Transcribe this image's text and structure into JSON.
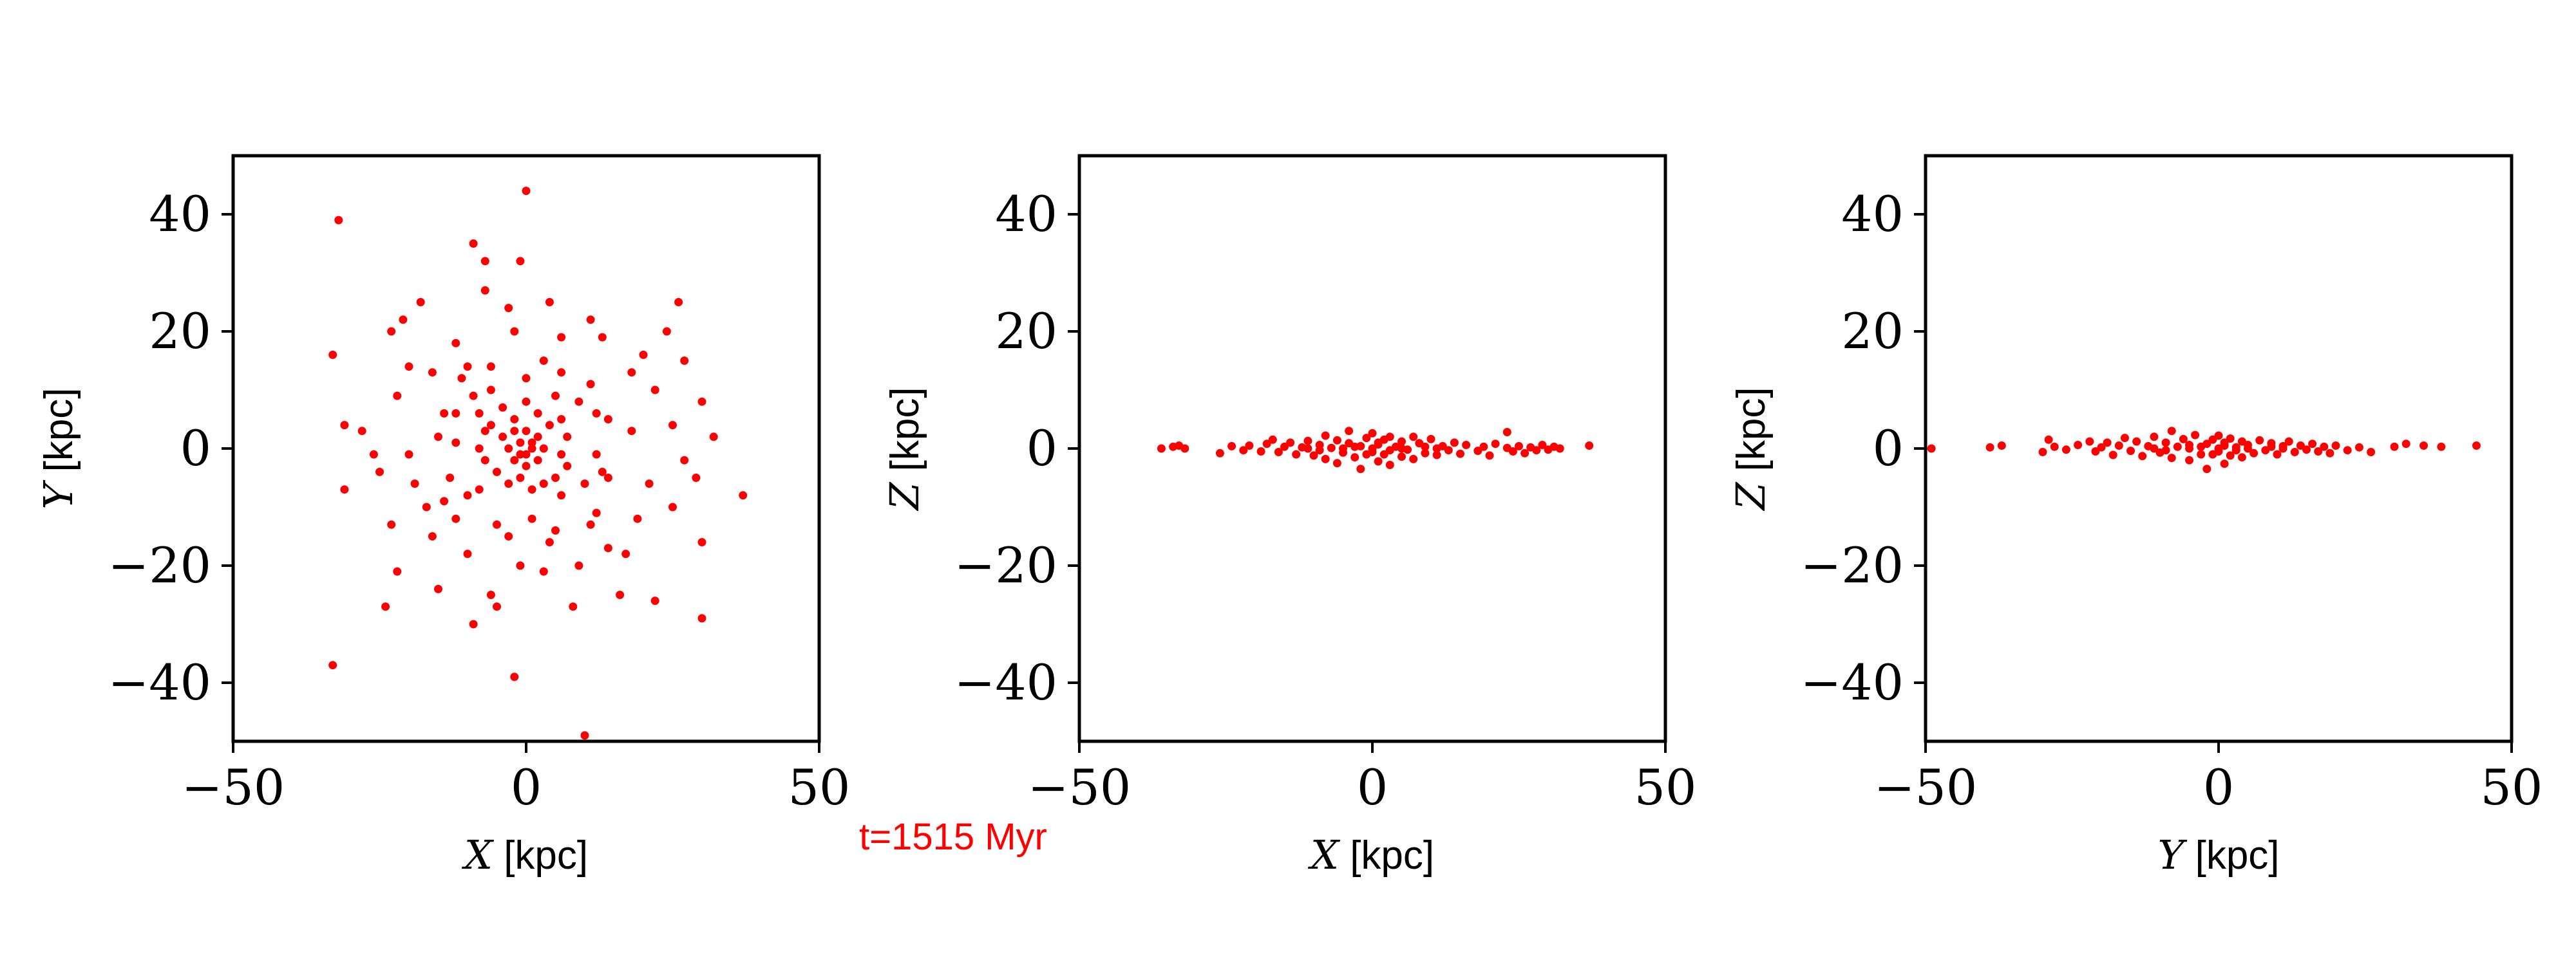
{
  "figure": {
    "time_label": "t=1515 Myr",
    "marker_color": "#ff0000",
    "axis_color": "#000000"
  },
  "chart_data": [
    {
      "type": "scatter",
      "title": "",
      "xlabel": {
        "var": "X",
        "unit": " [kpc]"
      },
      "ylabel": {
        "var": "Y",
        "unit": " [kpc]"
      },
      "xlim": [
        -50,
        50
      ],
      "ylim": [
        -50,
        50
      ],
      "xticks": [
        -50,
        0,
        50
      ],
      "yticks": [
        -40,
        -20,
        0,
        20,
        40
      ],
      "xtick_labels": [
        "−50",
        "0",
        "50"
      ],
      "ytick_labels": [
        "−40",
        "−20",
        "0",
        "20",
        "40"
      ],
      "grid": false,
      "color": "#ff0000",
      "points": [
        [
          -32,
          39
        ],
        [
          0,
          44
        ],
        [
          -9,
          35
        ],
        [
          -7,
          32
        ],
        [
          -1,
          32
        ],
        [
          -18,
          25
        ],
        [
          -21,
          22
        ],
        [
          -7,
          27
        ],
        [
          -3,
          24
        ],
        [
          4,
          25
        ],
        [
          11,
          22
        ],
        [
          26,
          25
        ],
        [
          -33,
          16
        ],
        [
          -23,
          20
        ],
        [
          -12,
          18
        ],
        [
          -2,
          20
        ],
        [
          6,
          19
        ],
        [
          13,
          19
        ],
        [
          24,
          20
        ],
        [
          27,
          15
        ],
        [
          -31,
          4
        ],
        [
          -22,
          9
        ],
        [
          -16,
          13
        ],
        [
          -10,
          14
        ],
        [
          3,
          15
        ],
        [
          18,
          13
        ],
        [
          22,
          10
        ],
        [
          30,
          8
        ],
        [
          -28,
          3
        ],
        [
          -20,
          -1
        ],
        [
          -15,
          2
        ],
        [
          -12,
          6
        ],
        [
          -6,
          10
        ],
        [
          5,
          9
        ],
        [
          12,
          6
        ],
        [
          18,
          3
        ],
        [
          25,
          4
        ],
        [
          32,
          2
        ],
        [
          -31,
          -7
        ],
        [
          -25,
          -4
        ],
        [
          -19,
          -6
        ],
        [
          -14,
          -9
        ],
        [
          -8,
          -7
        ],
        [
          6,
          -8
        ],
        [
          14,
          -5
        ],
        [
          21,
          -6
        ],
        [
          29,
          -5
        ],
        [
          37,
          -8
        ],
        [
          -23,
          -13
        ],
        [
          -16,
          -15
        ],
        [
          -10,
          -18
        ],
        [
          -3,
          -15
        ],
        [
          4,
          -16
        ],
        [
          11,
          -13
        ],
        [
          19,
          -12
        ],
        [
          25,
          -10
        ],
        [
          30,
          -16
        ],
        [
          -24,
          -27
        ],
        [
          -22,
          -21
        ],
        [
          -15,
          -24
        ],
        [
          -9,
          -30
        ],
        [
          -6,
          -25
        ],
        [
          -1,
          -20
        ],
        [
          3,
          -21
        ],
        [
          9,
          -20
        ],
        [
          16,
          -25
        ],
        [
          22,
          -26
        ],
        [
          30,
          -29
        ],
        [
          -33,
          -37
        ],
        [
          -2,
          -39
        ],
        [
          10,
          -49
        ],
        [
          14,
          -17
        ],
        [
          -17,
          -10
        ],
        [
          17,
          -18
        ],
        [
          -20,
          14
        ],
        [
          20,
          16
        ],
        [
          -5,
          -27
        ],
        [
          8,
          -27
        ],
        [
          -26,
          -1
        ],
        [
          27,
          -2
        ],
        [
          -8,
          6
        ],
        [
          -6,
          4
        ],
        [
          -4,
          7
        ],
        [
          -2,
          5
        ],
        [
          0,
          8
        ],
        [
          2,
          6
        ],
        [
          4,
          4
        ],
        [
          6,
          5
        ],
        [
          7,
          2
        ],
        [
          6,
          -1
        ],
        [
          7,
          -3
        ],
        [
          5,
          -5
        ],
        [
          3,
          -6
        ],
        [
          1,
          -7
        ],
        [
          -1,
          -5
        ],
        [
          -3,
          -6
        ],
        [
          -5,
          -4
        ],
        [
          -7,
          -2
        ],
        [
          -8,
          0
        ],
        [
          -7,
          3
        ],
        [
          -4,
          2
        ],
        [
          -2,
          3
        ],
        [
          0,
          3
        ],
        [
          2,
          2
        ],
        [
          3,
          0
        ],
        [
          2,
          -2
        ],
        [
          0,
          -3
        ],
        [
          -2,
          -2
        ],
        [
          -3,
          0
        ],
        [
          -1,
          1
        ],
        [
          1,
          0
        ],
        [
          0,
          -1
        ],
        [
          -1,
          -1
        ],
        [
          1,
          1
        ],
        [
          -9,
          9
        ],
        [
          9,
          8
        ],
        [
          10,
          -6
        ],
        [
          -10,
          -8
        ],
        [
          -12,
          1
        ],
        [
          12,
          -1
        ],
        [
          0,
          12
        ],
        [
          1,
          -12
        ],
        [
          -11,
          12
        ],
        [
          11,
          11
        ],
        [
          -12,
          -12
        ],
        [
          12,
          -11
        ],
        [
          -6,
          14
        ],
        [
          6,
          13
        ],
        [
          -14,
          6
        ],
        [
          14,
          5
        ],
        [
          -13,
          -5
        ],
        [
          13,
          -4
        ],
        [
          -5,
          -13
        ],
        [
          5,
          -14
        ]
      ]
    },
    {
      "type": "scatter",
      "title": "",
      "xlabel": {
        "var": "X",
        "unit": " [kpc]"
      },
      "ylabel": {
        "var": "Z",
        "unit": " [kpc]"
      },
      "xlim": [
        -50,
        50
      ],
      "ylim": [
        -50,
        50
      ],
      "xticks": [
        -50,
        0,
        50
      ],
      "yticks": [
        -40,
        -20,
        0,
        20,
        40
      ],
      "xtick_labels": [
        "−50",
        "0",
        "50"
      ],
      "ytick_labels": [
        "−40",
        "−20",
        "0",
        "20",
        "40"
      ],
      "grid": false,
      "color": "#ff0000",
      "points": [
        [
          -36,
          0
        ],
        [
          -34,
          0.3
        ],
        [
          -33,
          0.5
        ],
        [
          -32,
          0
        ],
        [
          -26,
          -0.8
        ],
        [
          -24,
          0.4
        ],
        [
          -22,
          -0.3
        ],
        [
          -21,
          0.5
        ],
        [
          -19,
          -0.5
        ],
        [
          -18,
          0.8
        ],
        [
          -17,
          1.5
        ],
        [
          -16,
          -0.6
        ],
        [
          -15,
          0.3
        ],
        [
          -14,
          1
        ],
        [
          -13,
          -1
        ],
        [
          -12,
          0.2
        ],
        [
          -11,
          1.3
        ],
        [
          -10,
          -1.2
        ],
        [
          -9,
          0.6
        ],
        [
          -8,
          2.2
        ],
        [
          -8,
          -1.8
        ],
        [
          -7,
          0.1
        ],
        [
          -6,
          1.4
        ],
        [
          -6,
          -2.5
        ],
        [
          -5,
          -0.7
        ],
        [
          -4,
          3
        ],
        [
          -4,
          0.9
        ],
        [
          -3,
          -1.5
        ],
        [
          -2,
          0.4
        ],
        [
          -2,
          -3.5
        ],
        [
          -1,
          1.8
        ],
        [
          0,
          -0.6
        ],
        [
          0,
          2.6
        ],
        [
          1,
          -2.2
        ],
        [
          1,
          0.7
        ],
        [
          2,
          1.5
        ],
        [
          2,
          -1
        ],
        [
          3,
          2
        ],
        [
          3,
          -2.8
        ],
        [
          4,
          0.3
        ],
        [
          5,
          1.2
        ],
        [
          5,
          -1.4
        ],
        [
          6,
          -0.2
        ],
        [
          7,
          2
        ],
        [
          7,
          -1.8
        ],
        [
          8,
          0.9
        ],
        [
          9,
          -0.8
        ],
        [
          10,
          1.6
        ],
        [
          11,
          -1.1
        ],
        [
          12,
          0.4
        ],
        [
          13,
          -0.3
        ],
        [
          14,
          1
        ],
        [
          15,
          -0.9
        ],
        [
          16,
          0.6
        ],
        [
          18,
          -0.4
        ],
        [
          19,
          0.3
        ],
        [
          20,
          -1.2
        ],
        [
          21,
          0.8
        ],
        [
          23,
          2.8
        ],
        [
          23,
          0.1
        ],
        [
          24,
          -0.5
        ],
        [
          25,
          0.4
        ],
        [
          26,
          -0.8
        ],
        [
          27,
          0.2
        ],
        [
          28,
          -0.3
        ],
        [
          29,
          0.6
        ],
        [
          30,
          -0.2
        ],
        [
          31,
          0.3
        ],
        [
          32,
          0
        ],
        [
          37,
          0.5
        ],
        [
          -11,
          0
        ],
        [
          -5,
          0
        ],
        [
          0,
          0
        ],
        [
          5,
          0
        ],
        [
          11,
          0
        ],
        [
          -9,
          -0.3
        ],
        [
          -3,
          0.3
        ],
        [
          3,
          -0.3
        ],
        [
          9,
          0.3
        ],
        [
          -1,
          -1
        ],
        [
          1,
          1
        ]
      ]
    },
    {
      "type": "scatter",
      "title": "",
      "xlabel": {
        "var": "Y",
        "unit": " [kpc]"
      },
      "ylabel": {
        "var": "Z",
        "unit": " [kpc]"
      },
      "xlim": [
        -50,
        50
      ],
      "ylim": [
        -50,
        50
      ],
      "xticks": [
        -50,
        0,
        50
      ],
      "yticks": [
        -40,
        -20,
        0,
        20,
        40
      ],
      "xtick_labels": [
        "−50",
        "0",
        "50"
      ],
      "ytick_labels": [
        "−40",
        "−20",
        "0",
        "20",
        "40"
      ],
      "grid": false,
      "color": "#ff0000",
      "points": [
        [
          -49,
          0
        ],
        [
          -39,
          0.2
        ],
        [
          -37,
          0.5
        ],
        [
          -30,
          -0.6
        ],
        [
          -29,
          1.5
        ],
        [
          -28,
          0.3
        ],
        [
          -26,
          -0.2
        ],
        [
          -24,
          0.6
        ],
        [
          -22,
          1.2
        ],
        [
          -21,
          -0.5
        ],
        [
          -20,
          0.2
        ],
        [
          -19,
          1
        ],
        [
          -18,
          -1.1
        ],
        [
          -17,
          0.5
        ],
        [
          -16,
          1.8
        ],
        [
          -15,
          -0.4
        ],
        [
          -14,
          1.2
        ],
        [
          -13,
          -1.3
        ],
        [
          -12,
          0.4
        ],
        [
          -11,
          2
        ],
        [
          -10,
          -0.7
        ],
        [
          -9,
          1
        ],
        [
          -8,
          3
        ],
        [
          -8,
          -1.6
        ],
        [
          -7,
          0.3
        ],
        [
          -6,
          1.6
        ],
        [
          -5,
          -2
        ],
        [
          -5,
          0.6
        ],
        [
          -4,
          2.3
        ],
        [
          -3,
          -1
        ],
        [
          -2,
          0.8
        ],
        [
          -2,
          -3.5
        ],
        [
          -1,
          1.5
        ],
        [
          0,
          -0.5
        ],
        [
          0,
          2.2
        ],
        [
          1,
          -2.6
        ],
        [
          1,
          0.5
        ],
        [
          2,
          1.7
        ],
        [
          2,
          -1.2
        ],
        [
          3,
          0.2
        ],
        [
          4,
          1.2
        ],
        [
          4,
          -1.5
        ],
        [
          5,
          0.6
        ],
        [
          6,
          -0.8
        ],
        [
          7,
          1.4
        ],
        [
          8,
          -0.3
        ],
        [
          9,
          0.9
        ],
        [
          10,
          -1
        ],
        [
          11,
          0.4
        ],
        [
          12,
          1.2
        ],
        [
          13,
          -0.6
        ],
        [
          14,
          0.5
        ],
        [
          15,
          -0.2
        ],
        [
          16,
          0.8
        ],
        [
          17,
          -0.5
        ],
        [
          18,
          0.3
        ],
        [
          19,
          -0.8
        ],
        [
          20,
          0.5
        ],
        [
          22,
          -0.3
        ],
        [
          24,
          0.2
        ],
        [
          26,
          -0.6
        ],
        [
          30,
          0.3
        ],
        [
          32,
          0.8
        ],
        [
          35,
          0.5
        ],
        [
          38,
          0.3
        ],
        [
          44,
          0.5
        ],
        [
          -11,
          0
        ],
        [
          -5,
          0
        ],
        [
          0,
          0
        ],
        [
          5,
          0
        ],
        [
          11,
          0
        ],
        [
          -9,
          -0.3
        ],
        [
          -3,
          0.3
        ],
        [
          3,
          -0.3
        ],
        [
          9,
          0.3
        ],
        [
          -1,
          -1
        ],
        [
          1,
          1
        ]
      ]
    }
  ]
}
